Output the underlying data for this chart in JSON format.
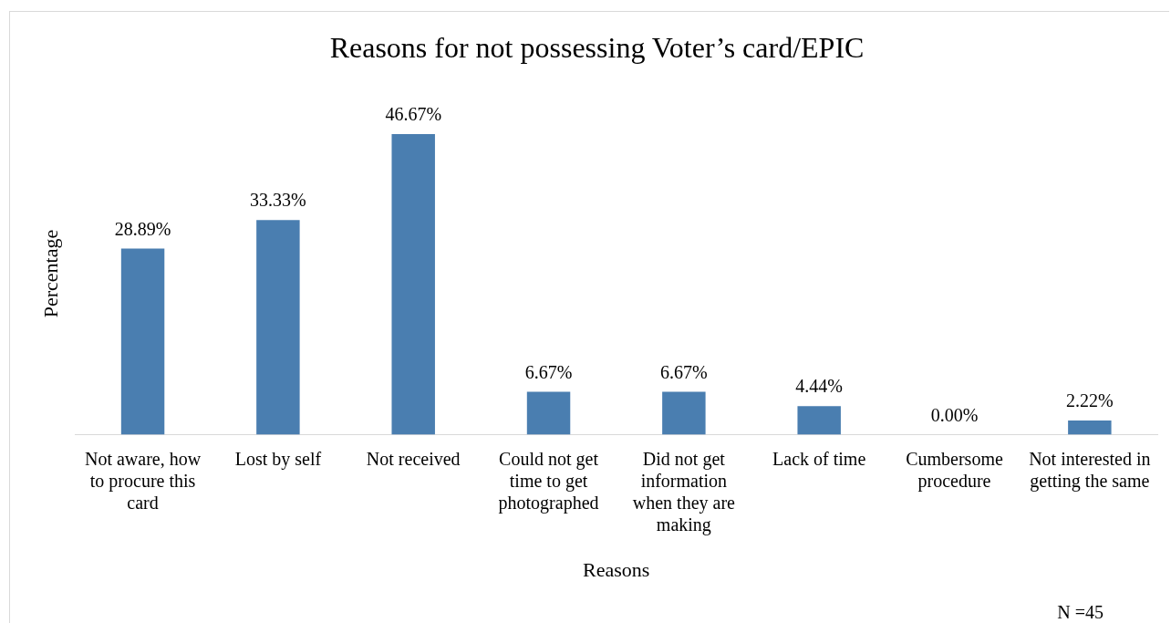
{
  "chart_data": {
    "type": "bar",
    "title": "Reasons for not possessing Voter’s card/EPIC",
    "xlabel": "Reasons",
    "ylabel": "Percentage",
    "categories": [
      "Not aware, how to procure this card",
      "Lost by self",
      "Not received",
      "Could not get time to get photographed",
      "Did not get information when they are making",
      "Lack of time",
      "Cumbersome procedure",
      "Not interested in getting the same"
    ],
    "values": [
      28.89,
      33.33,
      46.67,
      6.67,
      6.67,
      4.44,
      0.0,
      2.22
    ],
    "value_labels": [
      "28.89%",
      "33.33%",
      "46.67%",
      "6.67%",
      "6.67%",
      "4.44%",
      "0.00%",
      "2.22%"
    ],
    "color": "#4a7eb0",
    "grid": false,
    "legend": false,
    "annotations": [
      "N =45"
    ]
  }
}
